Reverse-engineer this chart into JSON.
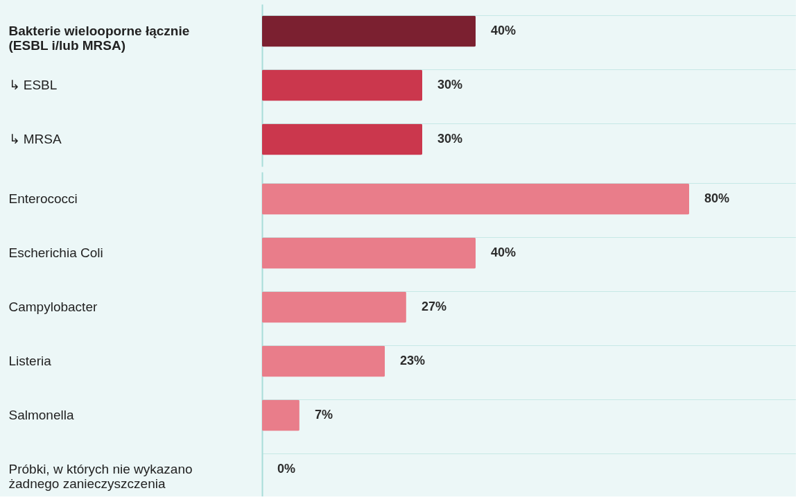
{
  "chart_data": [
    {
      "type": "bar",
      "orientation": "horizontal",
      "categories": [
        "Bakterie wielooporne łącznie (ESBL i/lub MRSA)",
        "↳ ESBL",
        "↳ MRSA"
      ],
      "values": [
        40,
        30,
        30
      ],
      "colors": [
        "#7b2030",
        "#cb374d",
        "#cb374d"
      ],
      "value_labels": [
        "40%",
        "30%",
        "30%"
      ],
      "xlim": [
        0,
        100
      ],
      "grid": "y",
      "tick_labels": "y"
    },
    {
      "type": "bar",
      "orientation": "horizontal",
      "categories": [
        "Enterococci",
        "Escherichia Coli",
        "Campylobacter",
        "Listeria",
        "Salmonella",
        "Próbki, w których nie wykazano żadnego zanieczyszczenia"
      ],
      "values": [
        80,
        40,
        27,
        23,
        7,
        0
      ],
      "colors": [
        "#e97d8a",
        "#e97d8a",
        "#e97d8a",
        "#e97d8a",
        "#e97d8a",
        "#e97d8a"
      ],
      "value_labels": [
        "80%",
        "40%",
        "27%",
        "23%",
        "7%",
        "0%"
      ],
      "xlim": [
        0,
        100
      ],
      "grid": "y",
      "tick_labels": "y"
    }
  ]
}
